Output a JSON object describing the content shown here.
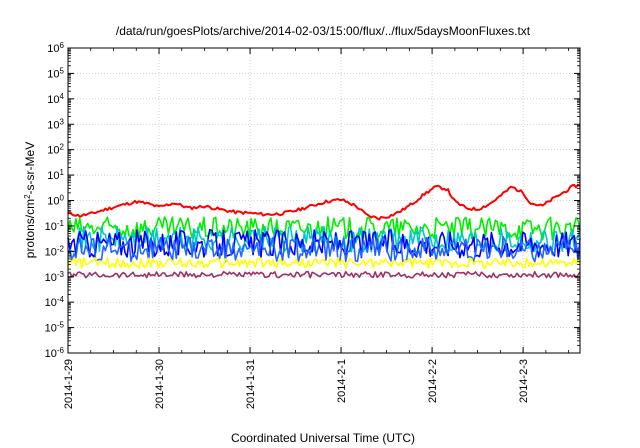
{
  "chart_data": {
    "type": "line",
    "title": "/data/run/goesPlots/archive/2014-02-03/15:00/flux/../flux/5daysMoonFluxes.txt",
    "xlabel": "Coordinated Universal Time (UTC)",
    "ylabel": {
      "prefix": "protons/cm",
      "sup": "2",
      "suffix": "-s-sr-MeV"
    },
    "x_start": "2014-01-29T00:00",
    "x_end": "2014-02-03T15:00",
    "xticks": [
      "2014-1-29",
      "2014-1-30",
      "2014-1-31",
      "2014-2-1",
      "2014-2-2",
      "2014-2-3"
    ],
    "y_scale": "log",
    "ylim": [
      1e-06,
      1000000.0
    ],
    "yticks": [
      {
        "base": "10",
        "exp": "-6"
      },
      {
        "base": "10",
        "exp": "-5"
      },
      {
        "base": "10",
        "exp": "-4"
      },
      {
        "base": "10",
        "exp": "-3"
      },
      {
        "base": "10",
        "exp": "-2"
      },
      {
        "base": "10",
        "exp": "-1"
      },
      {
        "base": "10",
        "exp": "0"
      },
      {
        "base": "10",
        "exp": "1"
      },
      {
        "base": "10",
        "exp": "2"
      },
      {
        "base": "10",
        "exp": "3"
      },
      {
        "base": "10",
        "exp": "4"
      },
      {
        "base": "10",
        "exp": "5"
      },
      {
        "base": "10",
        "exp": "6"
      }
    ],
    "grid": true,
    "series": [
      {
        "color": "#ff0000",
        "points": [
          [
            "2014-01-29T00:00",
            0.33
          ],
          [
            "2014-01-29T03:00",
            0.25
          ],
          [
            "2014-01-29T06:00",
            0.3
          ],
          [
            "2014-01-29T10:00",
            0.45
          ],
          [
            "2014-01-29T14:00",
            0.65
          ],
          [
            "2014-01-29T18:00",
            0.9
          ],
          [
            "2014-01-29T21:00",
            0.75
          ],
          [
            "2014-01-30T00:00",
            0.55
          ],
          [
            "2014-01-30T04:00",
            0.8
          ],
          [
            "2014-01-30T08:00",
            0.5
          ],
          [
            "2014-01-30T12:00",
            0.6
          ],
          [
            "2014-01-30T16:00",
            0.45
          ],
          [
            "2014-01-30T20:00",
            0.35
          ],
          [
            "2014-01-31T00:00",
            0.32
          ],
          [
            "2014-01-31T04:00",
            0.28
          ],
          [
            "2014-01-31T08:00",
            0.3
          ],
          [
            "2014-01-31T12:00",
            0.4
          ],
          [
            "2014-01-31T16:00",
            0.6
          ],
          [
            "2014-01-31T20:00",
            0.9
          ],
          [
            "2014-02-01T00:00",
            1.1
          ],
          [
            "2014-02-01T04:00",
            0.6
          ],
          [
            "2014-02-01T07:00",
            0.25
          ],
          [
            "2014-02-01T10:00",
            0.2
          ],
          [
            "2014-02-01T13:00",
            0.25
          ],
          [
            "2014-02-01T16:00",
            0.4
          ],
          [
            "2014-02-01T19:00",
            0.8
          ],
          [
            "2014-02-01T22:00",
            1.8
          ],
          [
            "2014-02-02T01:00",
            3.5
          ],
          [
            "2014-02-02T04:00",
            2.8
          ],
          [
            "2014-02-02T06:00",
            0.9
          ],
          [
            "2014-02-02T09:00",
            0.5
          ],
          [
            "2014-02-02T12:00",
            0.45
          ],
          [
            "2014-02-02T15:00",
            0.7
          ],
          [
            "2014-02-02T18:00",
            1.5
          ],
          [
            "2014-02-02T21:00",
            3.5
          ],
          [
            "2014-02-03T00:00",
            2.0
          ],
          [
            "2014-02-03T02:00",
            0.8
          ],
          [
            "2014-02-03T05:00",
            0.6
          ],
          [
            "2014-02-03T08:00",
            1.2
          ],
          [
            "2014-02-03T11:00",
            2.2
          ],
          [
            "2014-02-03T13:00",
            3.5
          ],
          [
            "2014-02-03T15:00",
            4.0
          ]
        ]
      },
      {
        "color": "#00ee00",
        "base": 0.08,
        "noise": 0.45
      },
      {
        "color": "#00c8c8",
        "base": 0.03,
        "noise": 0.5
      },
      {
        "color": "#0000ff",
        "base": 0.02,
        "noise": 0.55
      },
      {
        "color": "#2266ff",
        "base": 0.012,
        "noise": 0.5
      },
      {
        "color": "#ffff00",
        "base": 0.0035,
        "noise": 0.2
      },
      {
        "color": "#993366",
        "base": 0.0012,
        "noise": 0.12
      }
    ]
  }
}
